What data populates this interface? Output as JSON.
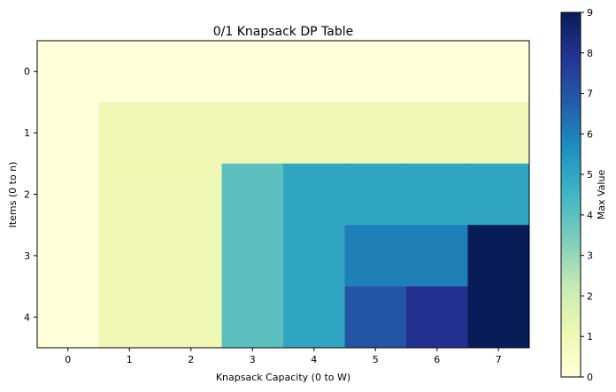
{
  "chart_data": {
    "type": "heatmap",
    "title": "0/1 Knapsack DP Table",
    "xlabel": "Knapsack Capacity (0 to W)",
    "ylabel": "Items (0 to n)",
    "x_categories": [
      "0",
      "1",
      "2",
      "3",
      "4",
      "5",
      "6",
      "7"
    ],
    "y_categories": [
      "0",
      "1",
      "2",
      "3",
      "4"
    ],
    "values": [
      [
        0,
        0,
        0,
        0,
        0,
        0,
        0,
        0
      ],
      [
        0,
        1,
        1,
        1,
        1,
        1,
        1,
        1
      ],
      [
        0,
        1,
        1,
        4,
        5,
        5,
        5,
        5
      ],
      [
        0,
        1,
        1,
        4,
        5,
        6,
        6,
        9
      ],
      [
        0,
        1,
        1,
        4,
        5,
        7,
        8,
        9
      ]
    ],
    "colorbar": {
      "label": "Max Value",
      "min": 0,
      "max": 9,
      "ticks": [
        "0",
        "1",
        "2",
        "3",
        "4",
        "5",
        "6",
        "7",
        "8",
        "9"
      ],
      "colormap": "YlGnBu"
    },
    "grid": false
  }
}
